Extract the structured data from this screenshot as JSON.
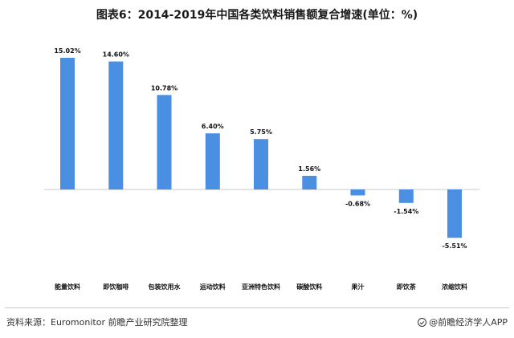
{
  "footer": {
    "source": "资料来源：Euromonitor 前瞻产业研究院整理",
    "brand": "@前瞻经济学人APP",
    "brand_icon": "brand-circle-icon"
  },
  "chart_data": {
    "type": "bar",
    "title": "图表6：2014-2019年中国各类饮料销售额复合增速(单位：%)",
    "categories": [
      "能量饮料",
      "即饮咖啡",
      "包装饮用水",
      "运动饮料",
      "亚洲特色饮料",
      "碳酸饮料",
      "果汁",
      "即饮茶",
      "浓缩饮料"
    ],
    "values": [
      15.02,
      14.6,
      10.78,
      6.4,
      5.75,
      1.56,
      -0.68,
      -1.54,
      -5.51
    ],
    "data_labels": [
      "15.02%",
      "14.60%",
      "10.78%",
      "6.40%",
      "5.75%",
      "1.56%",
      "-0.68%",
      "-1.54%",
      "-5.51%"
    ],
    "xlabel": "",
    "ylabel": "",
    "ylim": [
      -6,
      16
    ],
    "grid": false,
    "bar_color": "#4a8fe2",
    "axis_color": "#c8c8c8"
  }
}
